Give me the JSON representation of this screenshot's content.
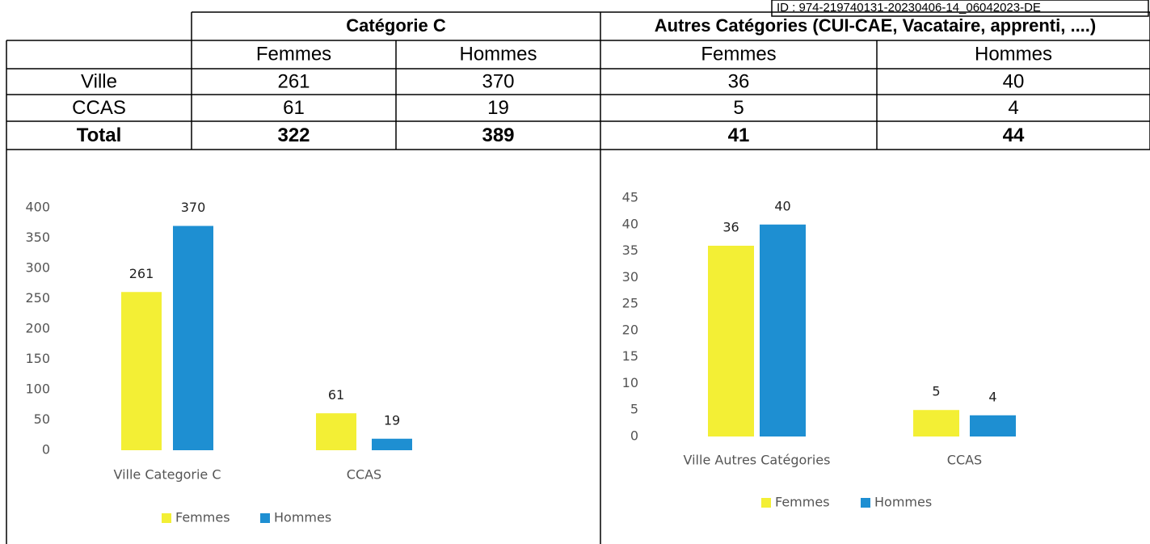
{
  "stamp": "ID : 974-219740131-20230406-14_06042023-DE",
  "table": {
    "groups": [
      "Catégorie C",
      "Autres Catégories (CUI-CAE, Vacataire, apprenti, ....)"
    ],
    "subheader": [
      "Femmes",
      "Hommes",
      "Femmes",
      "Hommes"
    ],
    "rows": [
      [
        "Ville",
        261,
        370,
        36,
        40
      ],
      [
        "CCAS",
        61,
        19,
        5,
        4
      ],
      [
        "Total",
        322,
        389,
        41,
        44
      ]
    ]
  },
  "chart_data": [
    {
      "type": "bar",
      "categories": [
        "Ville Categorie C",
        "CCAS"
      ],
      "series": [
        {
          "name": "Femmes",
          "color": "#f3ef35",
          "values": [
            261,
            61
          ]
        },
        {
          "name": "Hommes",
          "color": "#1e8fd2",
          "values": [
            370,
            19
          ]
        }
      ],
      "ylim": [
        0,
        400
      ],
      "yticks": [
        0,
        50,
        100,
        150,
        200,
        250,
        300,
        350,
        400
      ],
      "legend": "bottom"
    },
    {
      "type": "bar",
      "categories": [
        "Ville Autres Catégories",
        "CCAS"
      ],
      "series": [
        {
          "name": "Femmes",
          "color": "#f3ef35",
          "values": [
            36,
            5
          ]
        },
        {
          "name": "Hommes",
          "color": "#1e8fd2",
          "values": [
            40,
            4
          ]
        }
      ],
      "ylim": [
        0,
        45
      ],
      "yticks": [
        0,
        5,
        10,
        15,
        20,
        25,
        30,
        35,
        40,
        45
      ],
      "legend": "bottom"
    }
  ]
}
